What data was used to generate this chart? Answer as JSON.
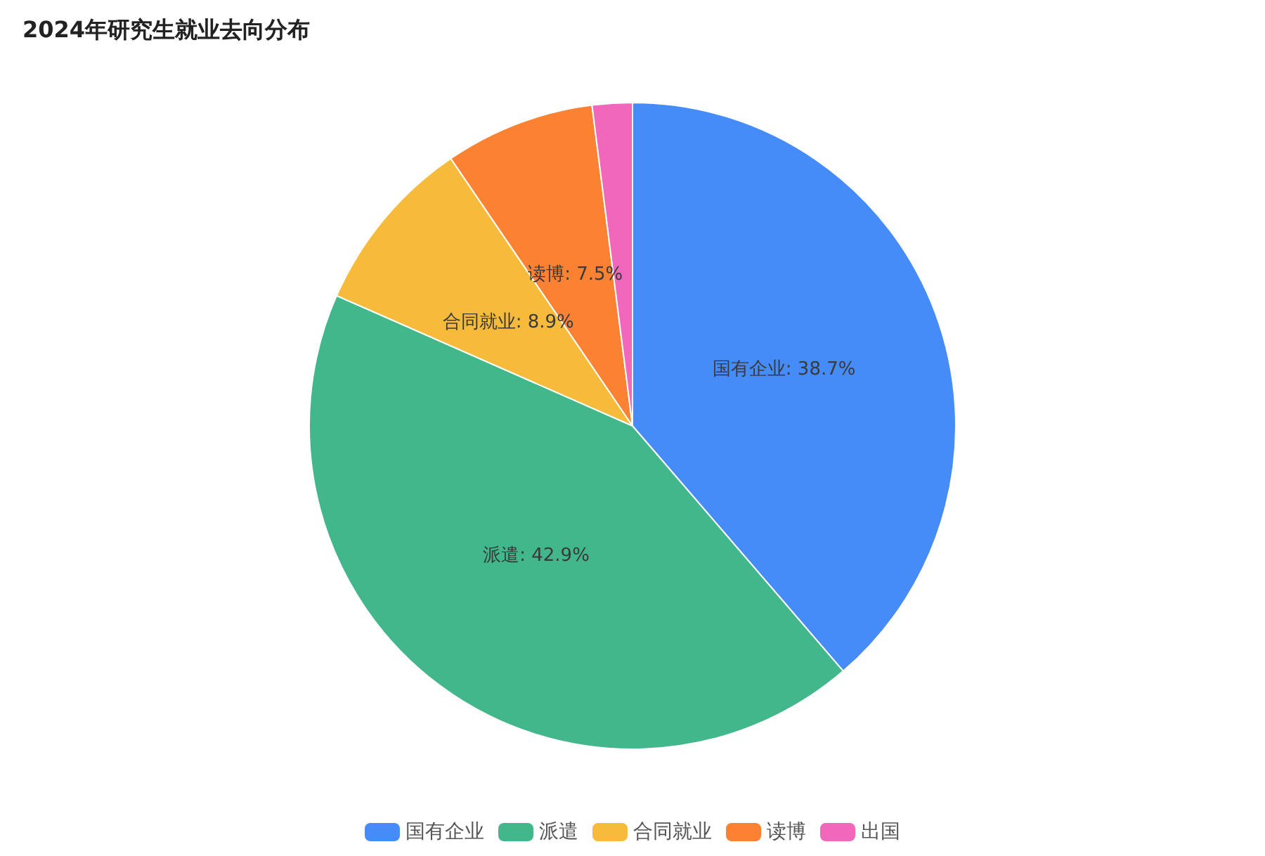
{
  "chart_data": {
    "type": "pie",
    "title": "2024年研究生就业去向分布",
    "categories": [
      "国有企业",
      "派遣",
      "合同就业",
      "读博",
      "出国"
    ],
    "values": [
      38.7,
      42.9,
      8.9,
      7.5,
      2.0
    ],
    "colors": [
      "#458cf8",
      "#41b78b",
      "#f7bb3b",
      "#fb8233",
      "#f067bc"
    ],
    "value_labels": [
      "国有企业: 38.7%",
      "派遣: 42.9%",
      "合同就业: 8.9%",
      "读博: 7.5%",
      null
    ],
    "legend": "bottom"
  }
}
